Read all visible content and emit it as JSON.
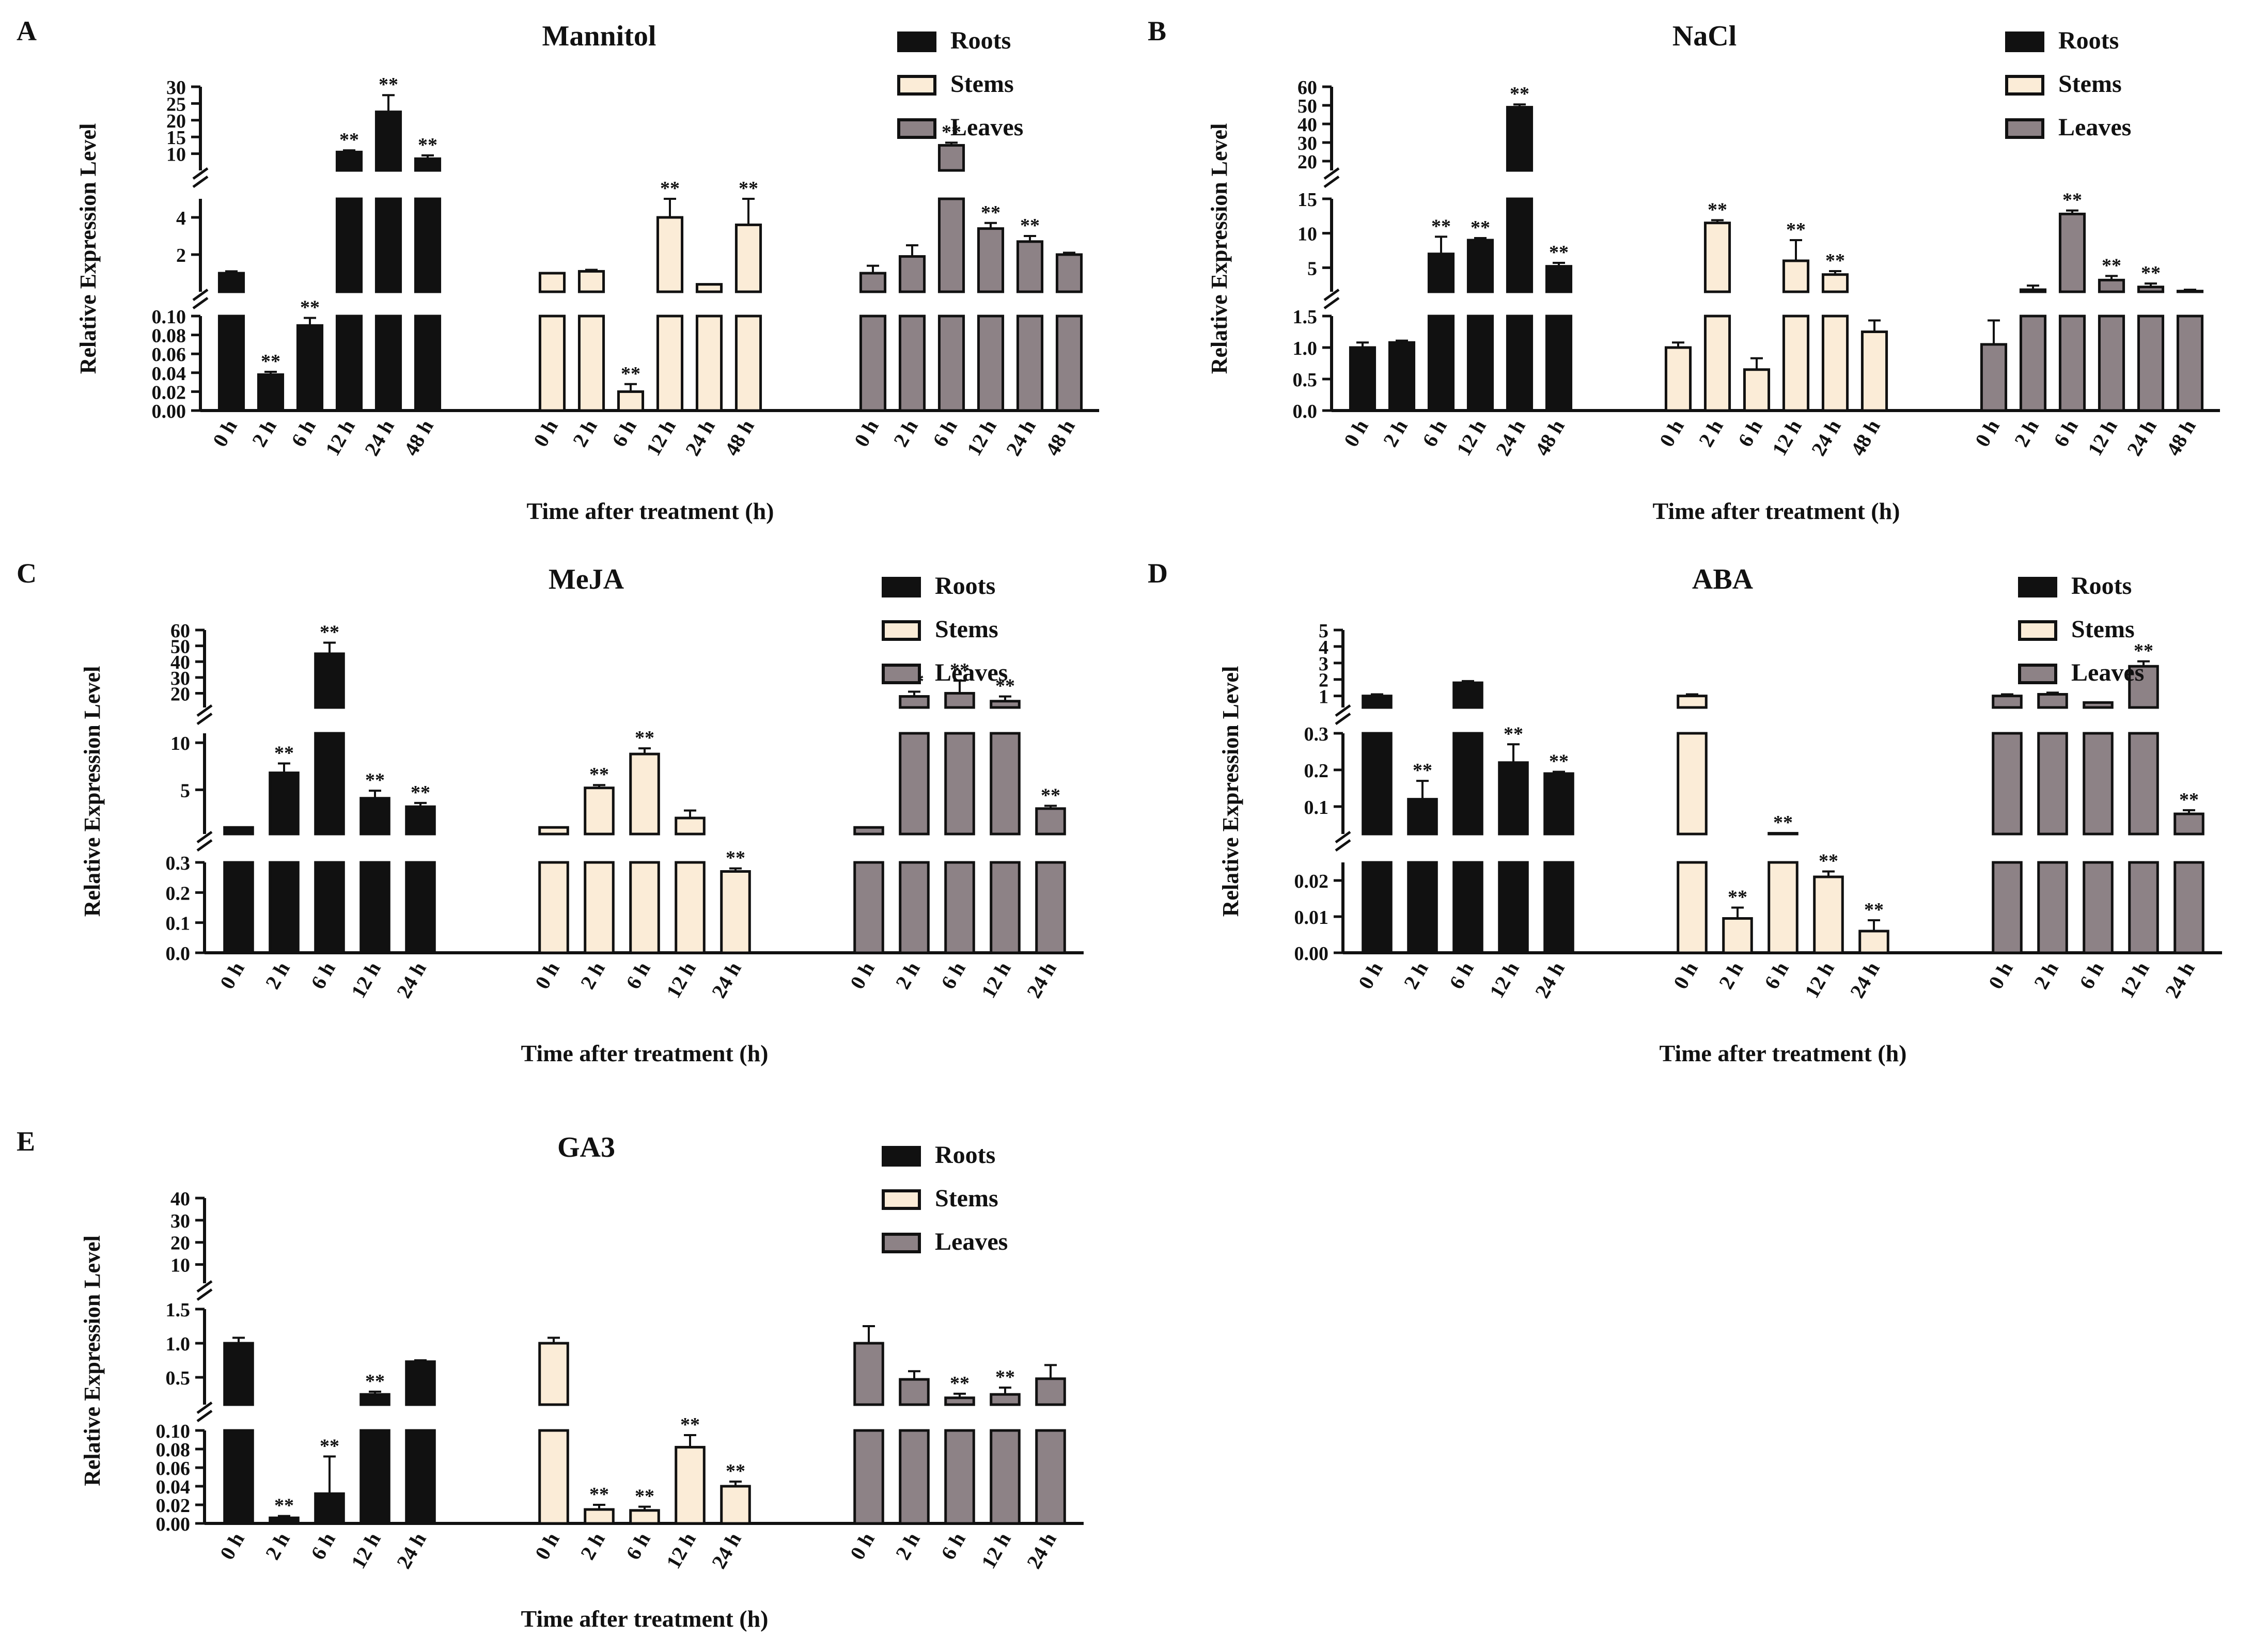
{
  "colors": {
    "roots": "#111111",
    "stems": "#fbecd7",
    "leaves": "#8d8286",
    "stroke": "#111111"
  },
  "legend": [
    "Roots",
    "Stems",
    "Leaves"
  ],
  "xlabel": "Time after treatment (h)",
  "ylabel": "Relative Expression Level",
  "significance_mark": "**",
  "chart_data": [
    {
      "type": "bar",
      "panel": "A",
      "title": "Mannitol",
      "categories": [
        "0 h",
        "2 h",
        "6 h",
        "12 h",
        "24 h",
        "48 h"
      ],
      "ylim": [
        0,
        30
      ],
      "y_breaks": [
        {
          "range": [
            0,
            0.1
          ],
          "ticks": [
            "0.00",
            "0.02",
            "0.04",
            "0.06",
            "0.08",
            "0.10"
          ]
        },
        {
          "range": [
            0,
            5
          ],
          "ticks": [
            "2",
            "4"
          ]
        },
        {
          "range": [
            5,
            30
          ],
          "ticks": [
            "10",
            "15",
            "20",
            "25",
            "30"
          ]
        }
      ],
      "series": [
        {
          "name": "Roots",
          "values": [
            1.0,
            0.038,
            0.09,
            10.5,
            22.5,
            8.5
          ],
          "errors": [
            0.1,
            0.003,
            0.008,
            0.5,
            5,
            1
          ],
          "significant": [
            false,
            true,
            true,
            true,
            true,
            true
          ]
        },
        {
          "name": "Stems",
          "values": [
            1.0,
            1.1,
            0.02,
            4.0,
            0.4,
            3.6
          ],
          "errors": [
            0.05,
            0.08,
            0.008,
            1.3,
            0.05,
            2.0
          ],
          "significant": [
            false,
            false,
            true,
            true,
            false,
            true
          ]
        },
        {
          "name": "Leaves",
          "values": [
            1.0,
            1.9,
            12.5,
            3.4,
            2.7,
            2.0
          ],
          "errors": [
            0.4,
            0.6,
            0.8,
            0.3,
            0.3,
            0.1
          ],
          "significant": [
            false,
            false,
            true,
            true,
            true,
            false
          ]
        }
      ]
    },
    {
      "type": "bar",
      "panel": "B",
      "title": "NaCl",
      "categories": [
        "0 h",
        "2 h",
        "6 h",
        "12 h",
        "24 h",
        "48 h"
      ],
      "ylim": [
        0,
        60
      ],
      "y_breaks": [
        {
          "range": [
            0,
            1.5
          ],
          "ticks": [
            "0.0",
            "0.5",
            "1.0",
            "1.5"
          ]
        },
        {
          "range": [
            1.5,
            15
          ],
          "ticks": [
            "5",
            "10",
            "15"
          ]
        },
        {
          "range": [
            15,
            60
          ],
          "ticks": [
            "20",
            "30",
            "40",
            "50",
            "60"
          ]
        }
      ],
      "series": [
        {
          "name": "Roots",
          "values": [
            1.0,
            1.08,
            7.0,
            9.0,
            49.0,
            5.2
          ],
          "errors": [
            0.08,
            0.03,
            2.5,
            0.3,
            1.5,
            0.5
          ],
          "significant": [
            false,
            false,
            true,
            true,
            true,
            true
          ]
        },
        {
          "name": "Stems",
          "values": [
            1.0,
            11.5,
            0.65,
            6.0,
            4.0,
            1.25
          ],
          "errors": [
            0.08,
            0.4,
            0.18,
            3.0,
            0.5,
            0.18
          ],
          "significant": [
            false,
            true,
            false,
            true,
            true,
            false
          ]
        },
        {
          "name": "Leaves",
          "values": [
            1.05,
            1.8,
            12.8,
            3.2,
            2.2,
            1.6
          ],
          "errors": [
            0.38,
            0.6,
            0.5,
            0.6,
            0.5,
            0.2
          ],
          "significant": [
            false,
            false,
            true,
            true,
            true,
            false
          ]
        }
      ]
    },
    {
      "type": "bar",
      "panel": "C",
      "title": "MeJA",
      "categories": [
        "0 h",
        "2 h",
        "6 h",
        "12 h",
        "24 h"
      ],
      "ylim": [
        0,
        60
      ],
      "y_breaks": [
        {
          "range": [
            0,
            0.3
          ],
          "ticks": [
            "0.0",
            "0.1",
            "0.2",
            "0.3"
          ]
        },
        {
          "range": [
            0.3,
            11
          ],
          "ticks": [
            "5",
            "10"
          ]
        },
        {
          "range": [
            11,
            60
          ],
          "ticks": [
            "20",
            "30",
            "40",
            "50",
            "60"
          ]
        }
      ],
      "series": [
        {
          "name": "Roots",
          "values": [
            1.0,
            6.8,
            45.0,
            4.1,
            3.2
          ],
          "errors": [
            0.1,
            1.0,
            7,
            0.8,
            0.4
          ],
          "significant": [
            false,
            true,
            true,
            true,
            true
          ]
        },
        {
          "name": "Stems",
          "values": [
            1.0,
            5.2,
            8.8,
            2.0,
            0.27
          ],
          "errors": [
            0.1,
            0.3,
            0.6,
            0.8,
            0.01
          ],
          "significant": [
            false,
            true,
            true,
            false,
            true
          ]
        },
        {
          "name": "Leaves",
          "values": [
            1.0,
            18.0,
            20.0,
            15.0,
            3.0
          ],
          "errors": [
            0.1,
            3,
            8,
            3,
            0.3
          ],
          "significant": [
            false,
            true,
            true,
            true,
            true
          ]
        }
      ]
    },
    {
      "type": "bar",
      "panel": "D",
      "title": "ABA",
      "categories": [
        "0 h",
        "2 h",
        "6 h",
        "12 h",
        "24 h"
      ],
      "ylim": [
        0,
        5
      ],
      "y_breaks": [
        {
          "range": [
            0,
            0.025
          ],
          "ticks": [
            "0.00",
            "0.01",
            "0.02"
          ]
        },
        {
          "range": [
            0.025,
            0.3
          ],
          "ticks": [
            "0.1",
            "0.2",
            "0.3"
          ]
        },
        {
          "range": [
            0.3,
            5
          ],
          "ticks": [
            "1",
            "2",
            "3",
            "4",
            "5"
          ]
        }
      ],
      "series": [
        {
          "name": "Roots",
          "values": [
            1.0,
            0.12,
            1.8,
            0.22,
            0.19
          ],
          "errors": [
            0.1,
            0.05,
            0.1,
            0.05,
            0.005
          ],
          "significant": [
            false,
            true,
            false,
            true,
            true
          ]
        },
        {
          "name": "Stems",
          "values": [
            1.0,
            0.0095,
            0.027,
            0.021,
            0.006
          ],
          "errors": [
            0.1,
            0.003,
            0.0005,
            0.0015,
            0.003
          ],
          "significant": [
            false,
            true,
            true,
            true,
            true
          ]
        },
        {
          "name": "Leaves",
          "values": [
            1.0,
            1.1,
            0.6,
            2.8,
            0.08
          ],
          "errors": [
            0.1,
            0.1,
            0.05,
            0.3,
            0.01
          ],
          "significant": [
            false,
            false,
            false,
            true,
            true
          ]
        }
      ]
    },
    {
      "type": "bar",
      "panel": "E",
      "title": "GA3",
      "categories": [
        "0 h",
        "2 h",
        "6 h",
        "12 h",
        "24 h"
      ],
      "ylim": [
        0,
        40
      ],
      "y_breaks": [
        {
          "range": [
            0,
            0.1
          ],
          "ticks": [
            "0.00",
            "0.02",
            "0.04",
            "0.06",
            "0.08",
            "0.10"
          ]
        },
        {
          "range": [
            0.1,
            1.5
          ],
          "ticks": [
            "0.5",
            "1.0",
            "1.5"
          ]
        },
        {
          "range": [
            1.5,
            40
          ],
          "ticks": [
            "10",
            "20",
            "30",
            "40"
          ]
        }
      ],
      "series": [
        {
          "name": "Roots",
          "values": [
            1.0,
            0.006,
            0.032,
            0.25,
            0.73
          ],
          "errors": [
            0.08,
            0.002,
            0.04,
            0.04,
            0.02
          ],
          "significant": [
            false,
            true,
            true,
            true,
            false
          ]
        },
        {
          "name": "Stems",
          "values": [
            1.0,
            0.015,
            0.014,
            0.082,
            0.04
          ],
          "errors": [
            0.08,
            0.005,
            0.004,
            0.013,
            0.005
          ],
          "significant": [
            false,
            true,
            true,
            true,
            true
          ]
        },
        {
          "name": "Leaves",
          "values": [
            1.0,
            0.47,
            0.2,
            0.25,
            0.48
          ],
          "errors": [
            0.25,
            0.12,
            0.06,
            0.1,
            0.2
          ],
          "significant": [
            false,
            false,
            true,
            true,
            false
          ]
        }
      ]
    }
  ]
}
